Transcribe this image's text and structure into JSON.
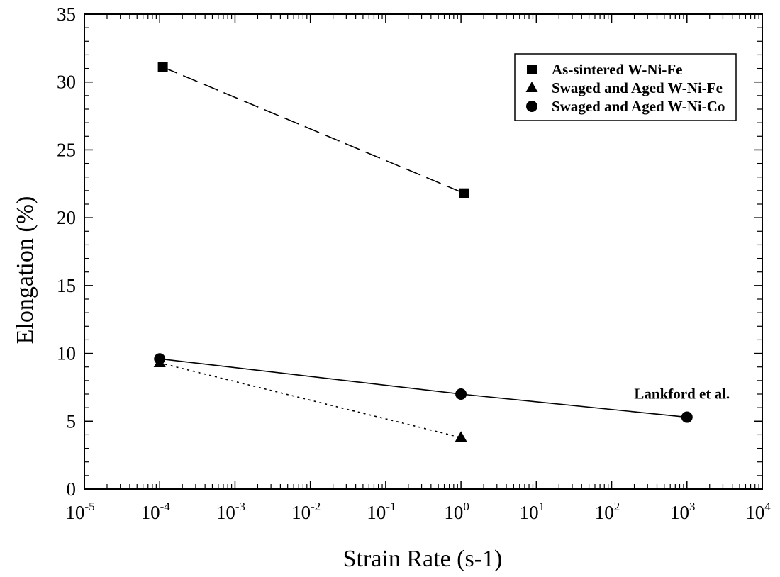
{
  "chart_data": {
    "type": "scatter",
    "title": "",
    "xlabel": "Strain Rate (s-1)",
    "ylabel": "Elongation (%)",
    "xscale": "log",
    "xlim": [
      1e-05,
      10000
    ],
    "ylim": [
      0,
      35
    ],
    "x_ticks": [
      {
        "base": "10",
        "exp": "-5",
        "value": 1e-05
      },
      {
        "base": "10",
        "exp": "-4",
        "value": 0.0001
      },
      {
        "base": "10",
        "exp": "-3",
        "value": 0.001
      },
      {
        "base": "10",
        "exp": "-2",
        "value": 0.01
      },
      {
        "base": "10",
        "exp": "-1",
        "value": 0.1
      },
      {
        "base": "10",
        "exp": "0",
        "value": 1
      },
      {
        "base": "10",
        "exp": "1",
        "value": 10
      },
      {
        "base": "10",
        "exp": "2",
        "value": 100
      },
      {
        "base": "10",
        "exp": "3",
        "value": 1000
      },
      {
        "base": "10",
        "exp": "4",
        "value": 10000
      }
    ],
    "y_ticks": [
      0,
      5,
      10,
      15,
      20,
      25,
      30,
      35
    ],
    "grid": false,
    "legend_position": "top-right",
    "series": [
      {
        "name": "As-sintered W-Ni-Fe",
        "marker": "square",
        "line_style": "dashed",
        "x": [
          0.00011,
          1.1
        ],
        "y": [
          31.1,
          21.8
        ]
      },
      {
        "name": "Swaged and Aged W-Ni-Fe",
        "marker": "triangle",
        "line_style": "dotted",
        "x": [
          0.0001,
          1
        ],
        "y": [
          9.3,
          3.8
        ]
      },
      {
        "name": "Swaged and Aged W-Ni-Co",
        "marker": "circle",
        "line_style": "solid",
        "x": [
          0.0001,
          1,
          1000
        ],
        "y": [
          9.6,
          7.0,
          5.3
        ]
      }
    ],
    "annotations": [
      {
        "text": "Lankford et al.",
        "x": 1000,
        "y": 5.3
      }
    ]
  }
}
